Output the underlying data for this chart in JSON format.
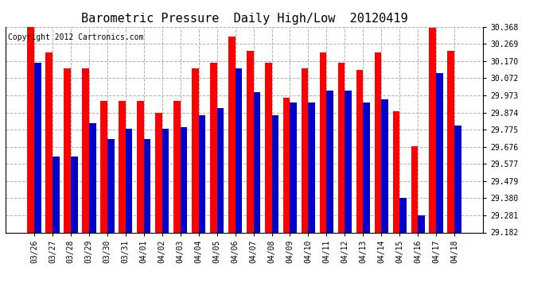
{
  "title": "Barometric Pressure  Daily High/Low  20120419",
  "copyright": "Copyright 2012 Cartronics.com",
  "categories": [
    "03/26",
    "03/27",
    "03/28",
    "03/29",
    "03/30",
    "03/31",
    "04/01",
    "04/02",
    "04/03",
    "04/04",
    "04/05",
    "04/06",
    "04/07",
    "04/08",
    "04/09",
    "04/10",
    "04/11",
    "04/12",
    "04/13",
    "04/14",
    "04/15",
    "04/16",
    "04/17",
    "04/18"
  ],
  "high": [
    30.368,
    30.22,
    30.13,
    30.13,
    29.94,
    29.94,
    29.94,
    29.87,
    29.94,
    30.13,
    30.16,
    30.31,
    30.23,
    30.16,
    29.96,
    30.13,
    30.22,
    30.16,
    30.12,
    30.22,
    29.88,
    29.68,
    30.36,
    30.23
  ],
  "low": [
    30.16,
    29.62,
    29.62,
    29.81,
    29.72,
    29.78,
    29.72,
    29.78,
    29.79,
    29.86,
    29.9,
    30.13,
    29.99,
    29.86,
    29.93,
    29.93,
    30.0,
    30.0,
    29.93,
    29.95,
    29.38,
    29.28,
    30.1,
    29.8
  ],
  "high_color": "#ff0000",
  "low_color": "#0000cc",
  "background_color": "#ffffff",
  "plot_bg_color": "#ffffff",
  "grid_color": "#b0b0b0",
  "ylim_min": 29.182,
  "ylim_max": 30.368,
  "yticks": [
    29.182,
    29.281,
    29.38,
    29.479,
    29.577,
    29.676,
    29.775,
    29.874,
    29.973,
    30.072,
    30.17,
    30.269,
    30.368
  ],
  "title_fontsize": 11,
  "copyright_fontsize": 7,
  "tick_fontsize": 7,
  "bar_width": 0.38
}
